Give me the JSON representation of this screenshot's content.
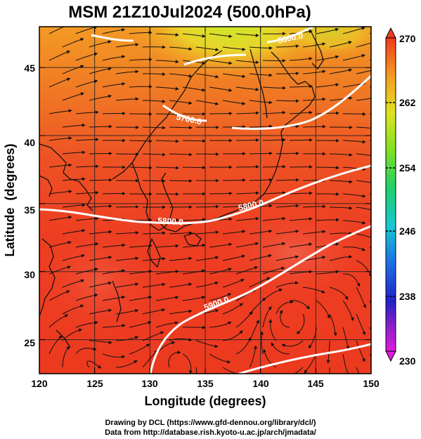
{
  "title": "MSM 21Z10Jul2024 (500.0hPa)",
  "map": {
    "lon_range": [
      120,
      150
    ],
    "lat_range": [
      22.5,
      48
    ],
    "x_label": "Longitude (degrees)",
    "y_label": "Latitude  (degrees)",
    "x_ticks": [
      "120",
      "125",
      "130",
      "135",
      "140",
      "145",
      "150"
    ],
    "y_ticks": [
      "25",
      "30",
      "35",
      "40",
      "45"
    ],
    "contour_labels": [
      "5800.0",
      "5900.0",
      "5800.0",
      "5700.0",
      "5600.0"
    ]
  },
  "colorbar": {
    "min": 230,
    "max": 270,
    "tick_labels": [
      "270",
      "262",
      "254",
      "246",
      "238",
      "230"
    ]
  },
  "credits": {
    "line1": "Drawing by DCL (https://www.gfd-dennou.org/library/dcl/)",
    "line2": "Data from http://database.rish.kyoto-u.ac.jp/arch/jmadata/"
  },
  "colors": {
    "warm": "#ef3a1c",
    "mid": "#f6a623",
    "cool": "#cfe81f",
    "contour": "#ffffff",
    "coast": "#111111"
  }
}
